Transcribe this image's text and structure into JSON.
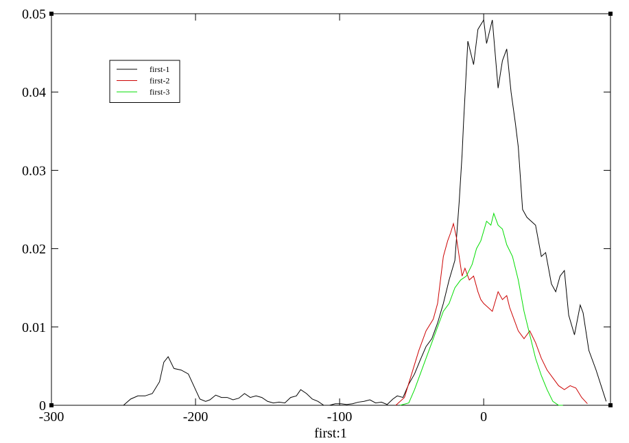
{
  "chart_data": {
    "type": "line",
    "xlabel": "first:1",
    "xlim": [
      -300,
      88
    ],
    "ylim": [
      0,
      0.05
    ],
    "xticks": [
      -300,
      -200,
      -100,
      0
    ],
    "yticks": [
      0,
      0.01,
      0.02,
      0.03,
      0.04,
      0.05
    ],
    "legend": "upper left",
    "series": [
      {
        "name": "first-1",
        "color": "#000000",
        "x": [
          -250,
          -245,
          -240,
          -235,
          -230,
          -225,
          -222,
          -219,
          -215,
          -210,
          -205,
          -200,
          -197,
          -193,
          -190,
          -186,
          -182,
          -178,
          -174,
          -170,
          -166,
          -162,
          -158,
          -154,
          -150,
          -146,
          -142,
          -138,
          -134,
          -130,
          -127,
          -123,
          -119,
          -115,
          -111,
          -107,
          -103,
          -99,
          -95,
          -91,
          -87,
          -83,
          -79,
          -75,
          -71,
          -67,
          -63,
          -60,
          -56,
          -52,
          -48,
          -44,
          -40,
          -36,
          -32,
          -28,
          -24,
          -20,
          -17,
          -15,
          -14,
          -11,
          -7,
          -4,
          0,
          2,
          6,
          10,
          13,
          16,
          19,
          22,
          24,
          27,
          30,
          36,
          40,
          43,
          47,
          50,
          53,
          56,
          59,
          63,
          67,
          69,
          73,
          78,
          85
        ],
        "values": [
          0.0,
          0.0008,
          0.0012,
          0.0012,
          0.0015,
          0.003,
          0.0055,
          0.0062,
          0.0047,
          0.0045,
          0.004,
          0.002,
          0.0008,
          0.0005,
          0.0007,
          0.0013,
          0.001,
          0.001,
          0.0007,
          0.0009,
          0.0015,
          0.001,
          0.0012,
          0.001,
          0.0005,
          0.0003,
          0.0004,
          0.0003,
          0.001,
          0.0012,
          0.002,
          0.0015,
          0.0008,
          0.0005,
          0.0,
          0.0,
          0.0002,
          0.0002,
          0.0001,
          0.0002,
          0.0004,
          0.0005,
          0.0007,
          0.0003,
          0.0004,
          0.0001,
          0.0008,
          0.0012,
          0.001,
          0.0027,
          0.004,
          0.0058,
          0.0075,
          0.0085,
          0.0105,
          0.013,
          0.016,
          0.0185,
          0.026,
          0.032,
          0.036,
          0.0465,
          0.0435,
          0.048,
          0.0492,
          0.0462,
          0.0492,
          0.0405,
          0.044,
          0.0455,
          0.04,
          0.036,
          0.033,
          0.025,
          0.024,
          0.023,
          0.019,
          0.0195,
          0.0155,
          0.0145,
          0.0165,
          0.0172,
          0.0115,
          0.009,
          0.0128,
          0.0118,
          0.007,
          0.0045,
          0.0005
        ]
      },
      {
        "name": "first-2",
        "color": "#cc0000",
        "x": [
          -61,
          -55,
          -50,
          -45,
          -40,
          -35,
          -32,
          -30,
          -28,
          -25,
          -23,
          -21,
          -19,
          -17,
          -15,
          -13,
          -10,
          -7,
          -4,
          -2,
          0,
          3,
          6,
          10,
          13,
          16,
          18,
          20,
          24,
          28,
          32,
          36,
          40,
          44,
          48,
          52,
          56,
          60,
          64,
          68,
          72
        ],
        "values": [
          0.0,
          0.001,
          0.004,
          0.007,
          0.0095,
          0.011,
          0.013,
          0.016,
          0.019,
          0.021,
          0.022,
          0.0232,
          0.0215,
          0.019,
          0.0165,
          0.0175,
          0.016,
          0.0165,
          0.0145,
          0.0135,
          0.013,
          0.0125,
          0.012,
          0.0145,
          0.0135,
          0.014,
          0.0125,
          0.0115,
          0.0095,
          0.0085,
          0.0095,
          0.008,
          0.006,
          0.0045,
          0.0035,
          0.0025,
          0.002,
          0.0025,
          0.0022,
          0.001,
          0.0002
        ]
      },
      {
        "name": "first-3",
        "color": "#00dd00",
        "x": [
          -58,
          -52,
          -48,
          -44,
          -40,
          -36,
          -32,
          -28,
          -24,
          -20,
          -16,
          -12,
          -8,
          -5,
          -2,
          2,
          5,
          7,
          10,
          13,
          16,
          20,
          24,
          28,
          32,
          36,
          40,
          44,
          48,
          52,
          55
        ],
        "values": [
          0.0,
          0.0003,
          0.002,
          0.004,
          0.006,
          0.008,
          0.01,
          0.012,
          0.013,
          0.015,
          0.016,
          0.0165,
          0.018,
          0.02,
          0.021,
          0.0235,
          0.023,
          0.0245,
          0.023,
          0.0225,
          0.0205,
          0.019,
          0.016,
          0.012,
          0.009,
          0.006,
          0.0038,
          0.002,
          0.0005,
          0.0,
          0.0
        ]
      }
    ]
  }
}
